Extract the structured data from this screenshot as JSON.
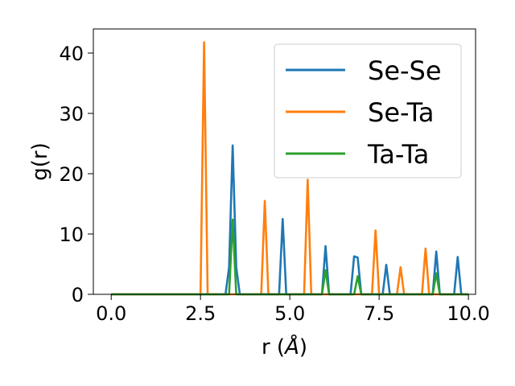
{
  "chart_data": {
    "type": "line",
    "xlabel_prefix": "r (",
    "xlabel_unit": "Å",
    "xlabel_suffix": ")",
    "ylabel": "g(r)",
    "xlim": [
      -0.5,
      10.2
    ],
    "ylim": [
      0,
      44
    ],
    "xticks": [
      0.0,
      2.5,
      5.0,
      7.5,
      10.0
    ],
    "xtick_labels": [
      "0.0",
      "2.5",
      "5.0",
      "7.5",
      "10.0"
    ],
    "yticks": [
      0,
      10,
      20,
      30,
      40
    ],
    "ytick_labels": [
      "0",
      "10",
      "20",
      "30",
      "40"
    ],
    "grid": false,
    "legend_position": "top-right",
    "series": [
      {
        "name": "Se-Se",
        "color": "#1f77b4",
        "x": [
          0.0,
          3.2,
          3.3,
          3.4,
          3.5,
          3.6,
          4.7,
          4.8,
          4.9,
          5.9,
          6.0,
          6.1,
          6.7,
          6.8,
          6.9,
          7.0,
          7.6,
          7.7,
          7.8,
          9.0,
          9.1,
          9.2,
          9.6,
          9.7,
          9.8,
          10.0
        ],
        "y": [
          0.0,
          0.0,
          4.5,
          24.7,
          4.5,
          0.0,
          0.0,
          12.5,
          0.0,
          0.0,
          8.0,
          0.0,
          0.0,
          6.3,
          6.1,
          0.0,
          0.0,
          4.9,
          0.0,
          0.0,
          7.1,
          0.0,
          0.0,
          6.2,
          0.0,
          0.0
        ]
      },
      {
        "name": "Se-Ta",
        "color": "#ff7f0e",
        "x": [
          0.0,
          2.5,
          2.6,
          2.7,
          4.2,
          4.3,
          4.4,
          5.4,
          5.5,
          5.6,
          7.3,
          7.4,
          7.5,
          8.0,
          8.1,
          8.2,
          8.7,
          8.8,
          8.9,
          10.0
        ],
        "y": [
          0.0,
          0.0,
          41.8,
          0.0,
          0.0,
          15.5,
          0.0,
          0.0,
          19.0,
          0.0,
          0.0,
          10.6,
          0.0,
          0.0,
          4.5,
          0.0,
          0.0,
          7.6,
          0.0,
          0.0
        ]
      },
      {
        "name": "Ta-Ta",
        "color": "#2ca02c",
        "x": [
          0.0,
          3.3,
          3.4,
          3.5,
          5.9,
          6.0,
          6.1,
          6.8,
          6.9,
          7.0,
          9.0,
          9.1,
          9.2,
          10.0
        ],
        "y": [
          0.0,
          0.0,
          12.4,
          0.0,
          0.0,
          4.0,
          0.0,
          0.0,
          3.0,
          0.0,
          0.0,
          3.5,
          0.0,
          0.0
        ]
      }
    ]
  }
}
